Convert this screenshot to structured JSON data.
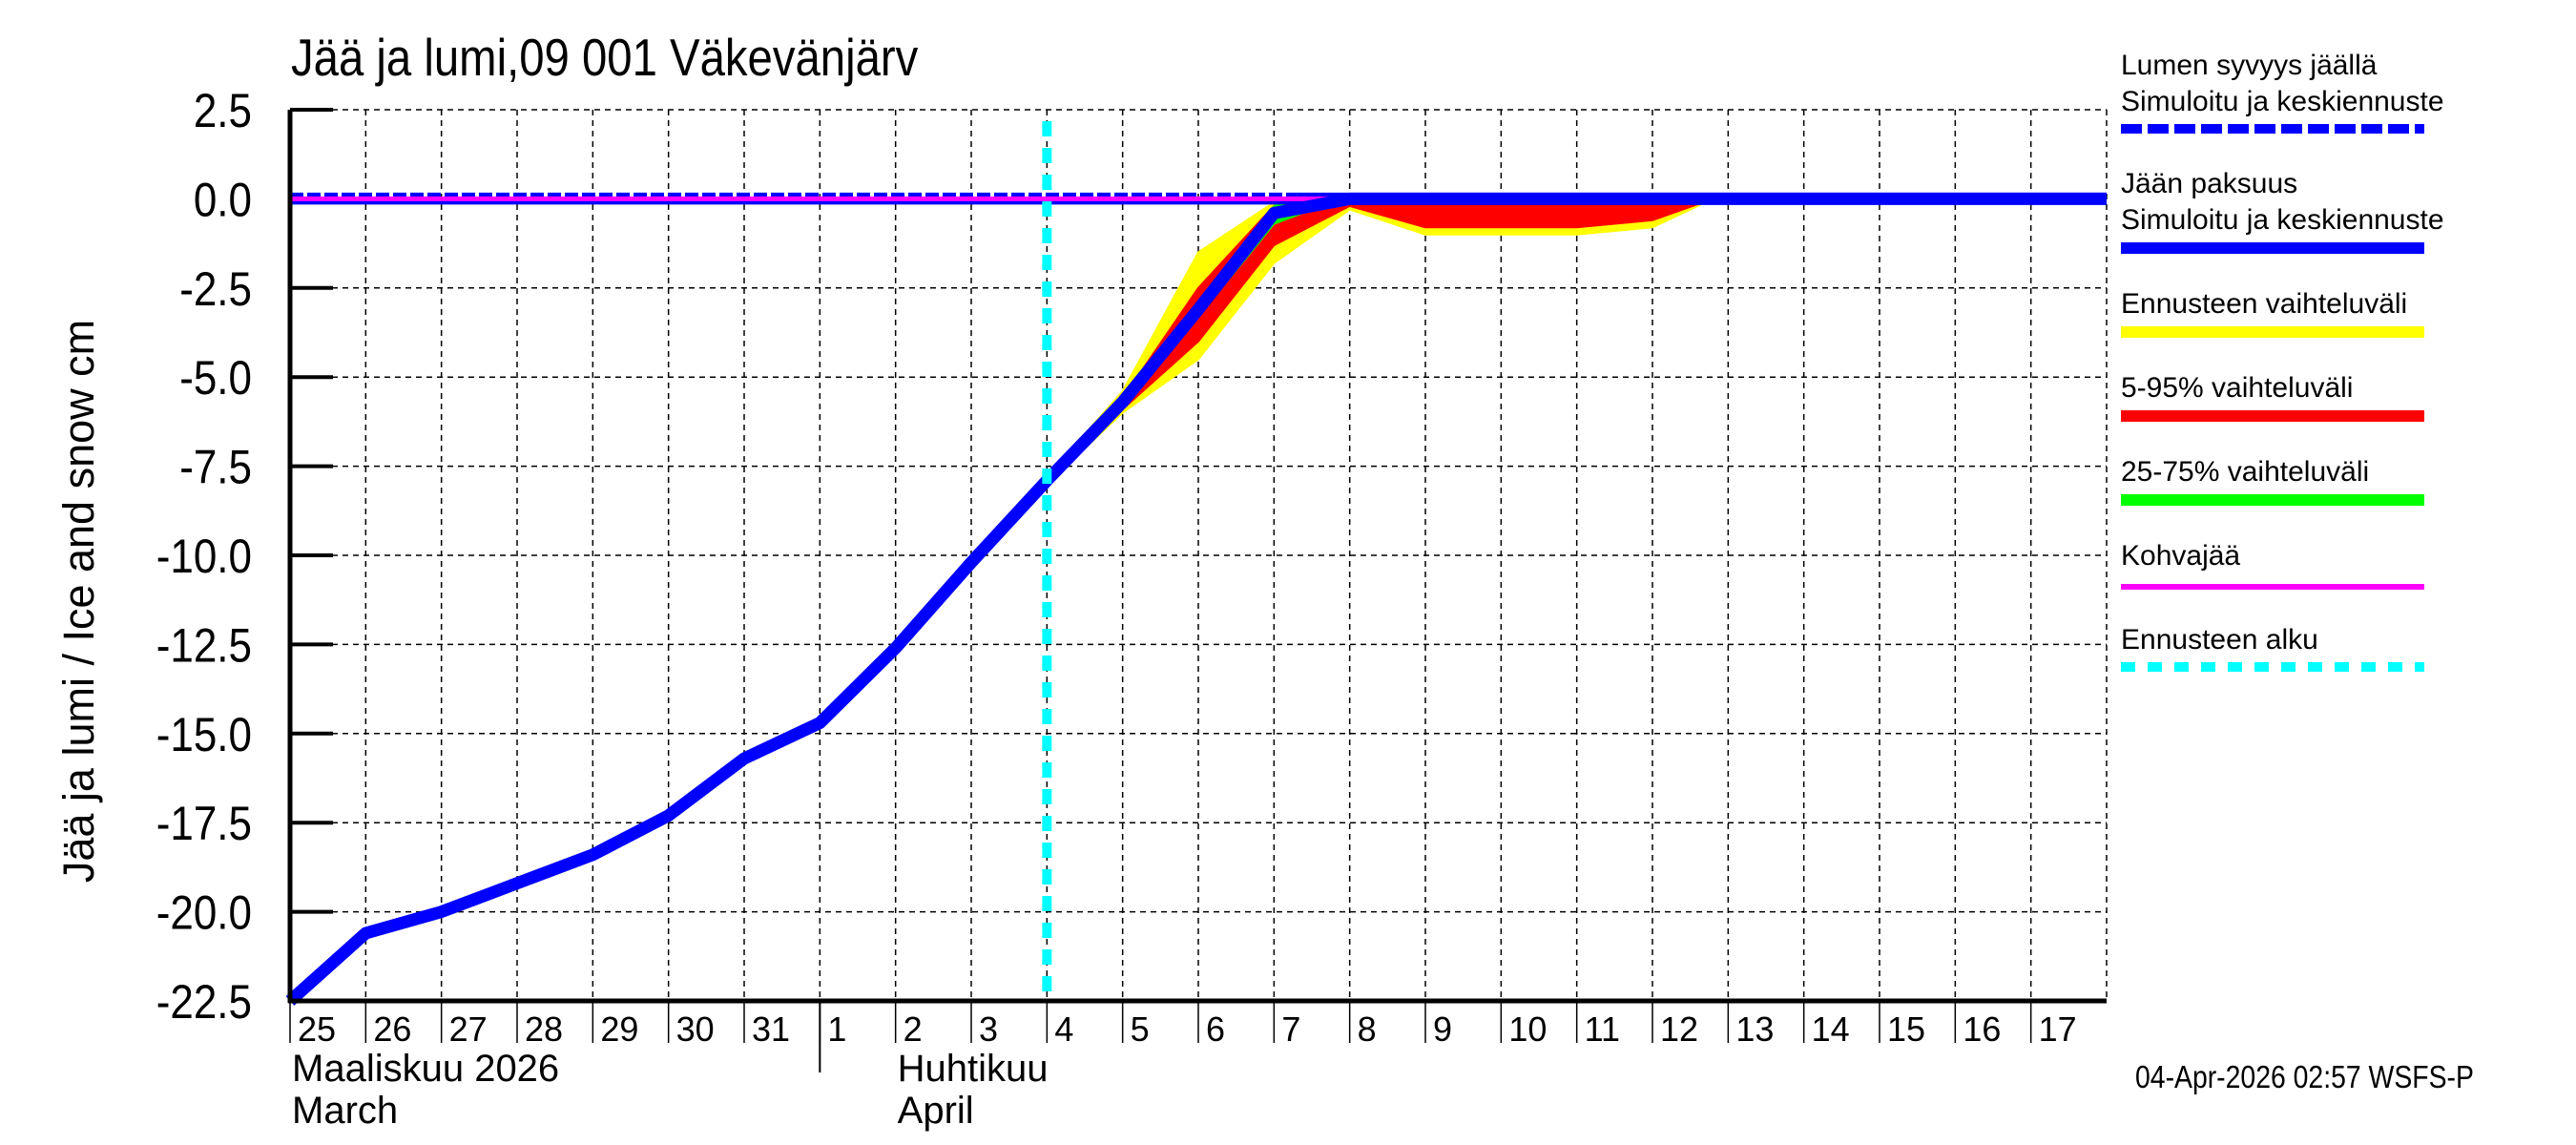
{
  "chart_data": {
    "type": "line",
    "title": "Jää ja lumi,09 001 Väkevänjärv",
    "xlabel": "",
    "ylabel": "Jää ja lumi / Ice and snow    cm",
    "ylim": [
      -22.5,
      2.5
    ],
    "yticks": [
      "2.5",
      "0.0",
      "-2.5",
      "-5.0",
      "-7.5",
      "-10.0",
      "-12.5",
      "-15.0",
      "-17.5",
      "-20.0",
      "-22.5"
    ],
    "x_tick_labels": [
      "25",
      "26",
      "27",
      "28",
      "29",
      "30",
      "31",
      "1",
      "2",
      "3",
      "4",
      "5",
      "6",
      "7",
      "8",
      "9",
      "10",
      "11",
      "12",
      "13",
      "14",
      "15",
      "16",
      "17"
    ],
    "months": [
      {
        "fi": "Maaliskuu 2026",
        "en": "March"
      },
      {
        "fi": "Huhtikuu",
        "en": "April"
      }
    ],
    "grid": true,
    "legend_position": "right",
    "forecast_start": "Apr 4",
    "x": [
      "Mar 25",
      "Mar 26",
      "Mar 27",
      "Mar 28",
      "Mar 29",
      "Mar 30",
      "Mar 31",
      "Apr 1",
      "Apr 2",
      "Apr 3",
      "Apr 4",
      "Apr 5",
      "Apr 6",
      "Apr 7",
      "Apr 8",
      "Apr 9",
      "Apr 10",
      "Apr 11",
      "Apr 12",
      "Apr 13",
      "Apr 14",
      "Apr 15",
      "Apr 16",
      "Apr 17",
      "Apr 18"
    ],
    "series": [
      {
        "name": "Jään paksuus – Simuloitu ja keskiennuste",
        "color": "#0000ff",
        "values": [
          -22.5,
          -20.6,
          -20.0,
          -19.2,
          -18.4,
          -17.3,
          -15.7,
          -14.7,
          -12.6,
          -10.2,
          -7.9,
          -5.7,
          -3.1,
          -0.4,
          0,
          0,
          0,
          0,
          0,
          0,
          0,
          0,
          0,
          0,
          0
        ]
      },
      {
        "name": "Lumen syvyys jäällä – Simuloitu ja keskiennuste",
        "color": "#0000ff",
        "style": "dashed",
        "values": [
          0,
          0,
          0,
          0,
          0,
          0,
          0,
          0,
          0,
          0,
          0,
          0,
          0,
          0,
          0,
          0,
          0,
          0,
          0,
          0,
          0,
          0,
          0,
          0,
          0
        ]
      },
      {
        "name": "Kohvajää",
        "color": "#ff00ff",
        "values": [
          0,
          0,
          0,
          0,
          0,
          0,
          0,
          0,
          0,
          0,
          0,
          0,
          0,
          0,
          0,
          0,
          0,
          0,
          0,
          0,
          0,
          0,
          0,
          0,
          0
        ]
      }
    ],
    "bands": [
      {
        "name": "Ennusteen vaihteluväli",
        "color": "#ffff00",
        "x_index": [
          10,
          11,
          12,
          13,
          14,
          15,
          16,
          17,
          18,
          18.8,
          24
        ],
        "upper": [
          -7.8,
          -5.4,
          -1.5,
          -0.1,
          0,
          0,
          0,
          0,
          0,
          0,
          0
        ],
        "lower": [
          -8.0,
          -6.0,
          -4.5,
          -1.8,
          -0.3,
          -1.0,
          -1.0,
          -1.0,
          -0.8,
          0,
          0
        ]
      },
      {
        "name": "5-95% vaihteluväli",
        "color": "#ff0000",
        "x_index": [
          10,
          11,
          12,
          13,
          14,
          15,
          16,
          17,
          18,
          18.8,
          24
        ],
        "upper": [
          -7.9,
          -5.6,
          -2.5,
          -0.2,
          0,
          0,
          0,
          0,
          0,
          0,
          0
        ],
        "lower": [
          -8.0,
          -5.9,
          -4.0,
          -1.3,
          -0.2,
          -0.8,
          -0.8,
          -0.8,
          -0.6,
          0,
          0
        ]
      },
      {
        "name": "25-75% vaihteluväli",
        "color": "#00ff00",
        "x_index": [
          10,
          11,
          12,
          13,
          13.5,
          14
        ],
        "upper": [
          -7.9,
          -5.7,
          -2.9,
          -0.2,
          0,
          0
        ],
        "lower": [
          -8.0,
          -5.8,
          -3.3,
          -0.7,
          -0.3,
          0
        ]
      }
    ]
  },
  "legend": {
    "items": [
      {
        "label1": "Lumen syvyys jäällä",
        "label2": "Simuloitu ja keskiennuste",
        "color": "#0000ff",
        "style": "dashed"
      },
      {
        "label1": "Jään paksuus",
        "label2": "Simuloitu ja keskiennuste",
        "color": "#0000ff",
        "style": "solid"
      },
      {
        "label1": "Ennusteen vaihteluväli",
        "color": "#ffff00",
        "style": "solid"
      },
      {
        "label1": "5-95% vaihteluväli",
        "color": "#ff0000",
        "style": "solid"
      },
      {
        "label1": "25-75% vaihteluväli",
        "color": "#00ff00",
        "style": "solid"
      },
      {
        "label1": "Kohvajää",
        "color": "#ff00ff",
        "style": "thin"
      },
      {
        "label1": "Ennusteen alku",
        "color": "#00ffff",
        "style": "dotted"
      }
    ]
  },
  "footer": "04-Apr-2026 02:57 WSFS-P"
}
